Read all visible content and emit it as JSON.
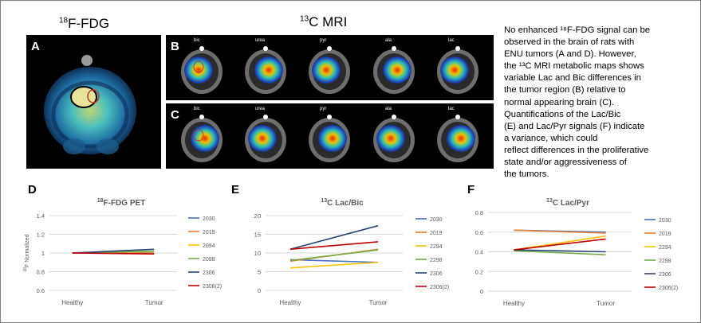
{
  "headers": {
    "pet_prefix": "18",
    "pet_text": "F-FDG",
    "mri_prefix": "13",
    "mri_text": "C MRI"
  },
  "panels": {
    "A": "A",
    "B": "B",
    "C": "C"
  },
  "metabolite_labels": [
    "bic",
    "urea",
    "pyr",
    "ala",
    "lac"
  ],
  "caption": {
    "lines": [
      "No enhanced ¹⁸F-FDG signal can be",
      "observed in the brain of rats with",
      "ENU tumors (A and D). However,",
      "the ¹³C MRI metabolic maps shows",
      "variable Lac and Bic differences in",
      "the tumor region (B) relative to",
      "normal appearing brain (C).",
      "Quantifications of the Lac/Bic",
      "(E) and Lac/Pyr signals (F) indicate",
      "a variance, which could",
      "reflect differences in the proliferative",
      "state and/or aggressiveness of",
      "the tumors."
    ]
  },
  "chart_data": [
    {
      "panel": "D",
      "type": "line",
      "title_sup": "18",
      "title": "F-FDG PET",
      "ylabel_sup": "18",
      "ylabel": "F Normalized",
      "categories": [
        "Healthy",
        "Tumor"
      ],
      "yticks": [
        "0.6",
        "0.8",
        "1",
        "1.2",
        "1.4"
      ],
      "ylim": [
        0.6,
        1.4
      ],
      "series": [
        {
          "name": "2030",
          "color": "#4472c4",
          "values": [
            1.0,
            1.0
          ]
        },
        {
          "name": "2019",
          "color": "#ed7d31",
          "values": [
            1.0,
            1.0
          ]
        },
        {
          "name": "2094",
          "color": "#ffc000",
          "values": [
            1.0,
            1.02
          ]
        },
        {
          "name": "2098",
          "color": "#70ad47",
          "values": [
            1.0,
            1.02
          ]
        },
        {
          "name": "2306",
          "color": "#264478",
          "values": [
            1.0,
            1.04
          ]
        },
        {
          "name": "2306(2)",
          "color": "#c00000",
          "values": [
            1.0,
            0.99
          ]
        }
      ]
    },
    {
      "panel": "E",
      "type": "line",
      "title_sup": "13",
      "title": "C Lac/Bic",
      "ylabel": "",
      "categories": [
        "Healthy",
        "Tumor"
      ],
      "yticks": [
        "0",
        "5",
        "10",
        "15",
        "20"
      ],
      "ylim": [
        0,
        20
      ],
      "series": [
        {
          "name": "2030",
          "color": "#4472c4",
          "values": [
            8.2,
            7.5
          ]
        },
        {
          "name": "2019",
          "color": "#ed7d31",
          "values": [
            7.8,
            11.0
          ]
        },
        {
          "name": "2294",
          "color": "#ffc000",
          "values": [
            6.0,
            7.5
          ]
        },
        {
          "name": "2298",
          "color": "#70ad47",
          "values": [
            8.0,
            10.8
          ]
        },
        {
          "name": "2306",
          "color": "#264478",
          "values": [
            11.0,
            17.3
          ]
        },
        {
          "name": "2306(2)",
          "color": "#c00000",
          "values": [
            11.0,
            13.0
          ]
        }
      ]
    },
    {
      "panel": "F",
      "type": "line",
      "title_sup": "13",
      "title": "C Lac/Pyr",
      "ylabel": "",
      "categories": [
        "Healthy",
        "Tumor"
      ],
      "yticks": [
        "0",
        "0.2",
        "0.4",
        "0.6",
        "0.8"
      ],
      "ylim": [
        0,
        0.8
      ],
      "series": [
        {
          "name": "2030",
          "color": "#4472c4",
          "values": [
            0.62,
            0.6
          ]
        },
        {
          "name": "2019",
          "color": "#ed7d31",
          "values": [
            0.62,
            0.59
          ]
        },
        {
          "name": "2294",
          "color": "#ffc000",
          "values": [
            0.42,
            0.56
          ]
        },
        {
          "name": "2298",
          "color": "#70ad47",
          "values": [
            0.41,
            0.37
          ]
        },
        {
          "name": "2306",
          "color": "#264478",
          "values": [
            0.42,
            0.4
          ]
        },
        {
          "name": "2306(2)",
          "color": "#c00000",
          "values": [
            0.42,
            0.53
          ]
        }
      ]
    }
  ]
}
